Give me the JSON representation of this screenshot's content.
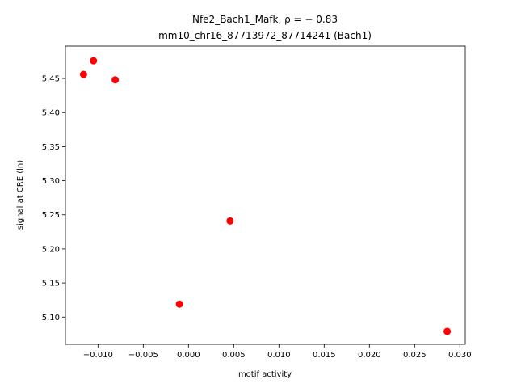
{
  "chart_data": {
    "type": "scatter",
    "title": "Nfe2_Bach1_Mafk, ρ = − 0.83",
    "subtitle": "mm10_chr16_87713972_87714241 (Bach1)",
    "x_label": "motif activity",
    "y_label": "signal at CRE (ln)",
    "x": [
      -0.0116,
      -0.0105,
      -0.0081,
      -0.001,
      0.0046,
      0.0286
    ],
    "values": [
      5.456,
      5.476,
      5.448,
      5.119,
      5.241,
      5.079
    ],
    "color": "#ff0000",
    "xlim": [
      -0.0136,
      0.0306
    ],
    "ylim": [
      5.06,
      5.4975
    ],
    "xticks": [
      {
        "value": -0.01,
        "label": "−0.010"
      },
      {
        "value": -0.005,
        "label": "−0.005"
      },
      {
        "value": 0,
        "label": "0.000"
      },
      0.005,
      {
        "value": 0.01,
        "label": "0.010"
      },
      0.015,
      {
        "value": 0.02,
        "label": "0.020"
      },
      0.025,
      {
        "value": 0.03,
        "label": "0.030"
      }
    ],
    "yticks": [
      {
        "value": 5.1,
        "label": "5.10"
      },
      5.15,
      {
        "value": 5.2,
        "label": "5.20"
      },
      5.25,
      {
        "value": 5.3,
        "label": "5.30"
      },
      5.35,
      {
        "value": 5.4,
        "label": "5.40"
      },
      5.45
    ]
  }
}
